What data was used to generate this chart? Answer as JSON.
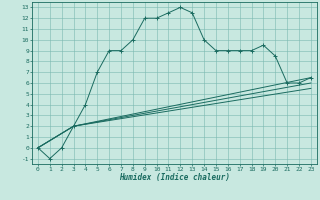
{
  "xlabel": "Humidex (Indice chaleur)",
  "bg_color": "#c8e8e0",
  "grid_color": "#7ab8b0",
  "line_color": "#1a6b60",
  "xlim": [
    -0.5,
    23.5
  ],
  "ylim": [
    -1.5,
    13.5
  ],
  "xticks": [
    0,
    1,
    2,
    3,
    4,
    5,
    6,
    7,
    8,
    9,
    10,
    11,
    12,
    13,
    14,
    15,
    16,
    17,
    18,
    19,
    20,
    21,
    22,
    23
  ],
  "yticks": [
    -1,
    0,
    1,
    2,
    3,
    4,
    5,
    6,
    7,
    8,
    9,
    10,
    11,
    12,
    13
  ],
  "series1_x": [
    0,
    1,
    2,
    3,
    4,
    5,
    6,
    7,
    8,
    9,
    10,
    11,
    12,
    13,
    14,
    15,
    16,
    17,
    18,
    19,
    20,
    21,
    22,
    23
  ],
  "series1_y": [
    0,
    -1,
    0,
    2,
    4,
    7,
    9,
    9,
    10,
    12,
    12,
    12.5,
    13,
    12.5,
    10,
    9,
    9,
    9,
    9,
    9.5,
    8.5,
    6,
    6,
    6.5
  ],
  "series2_x": [
    0,
    3,
    23
  ],
  "series2_y": [
    0,
    2,
    6.5
  ],
  "series3_x": [
    0,
    3,
    23
  ],
  "series3_y": [
    0,
    2,
    6.0
  ],
  "series4_x": [
    0,
    3,
    23
  ],
  "series4_y": [
    0,
    2,
    5.5
  ],
  "marker": "+",
  "linewidth": 0.7,
  "markersize": 3.0,
  "tick_fontsize": 4.5,
  "xlabel_fontsize": 5.5
}
